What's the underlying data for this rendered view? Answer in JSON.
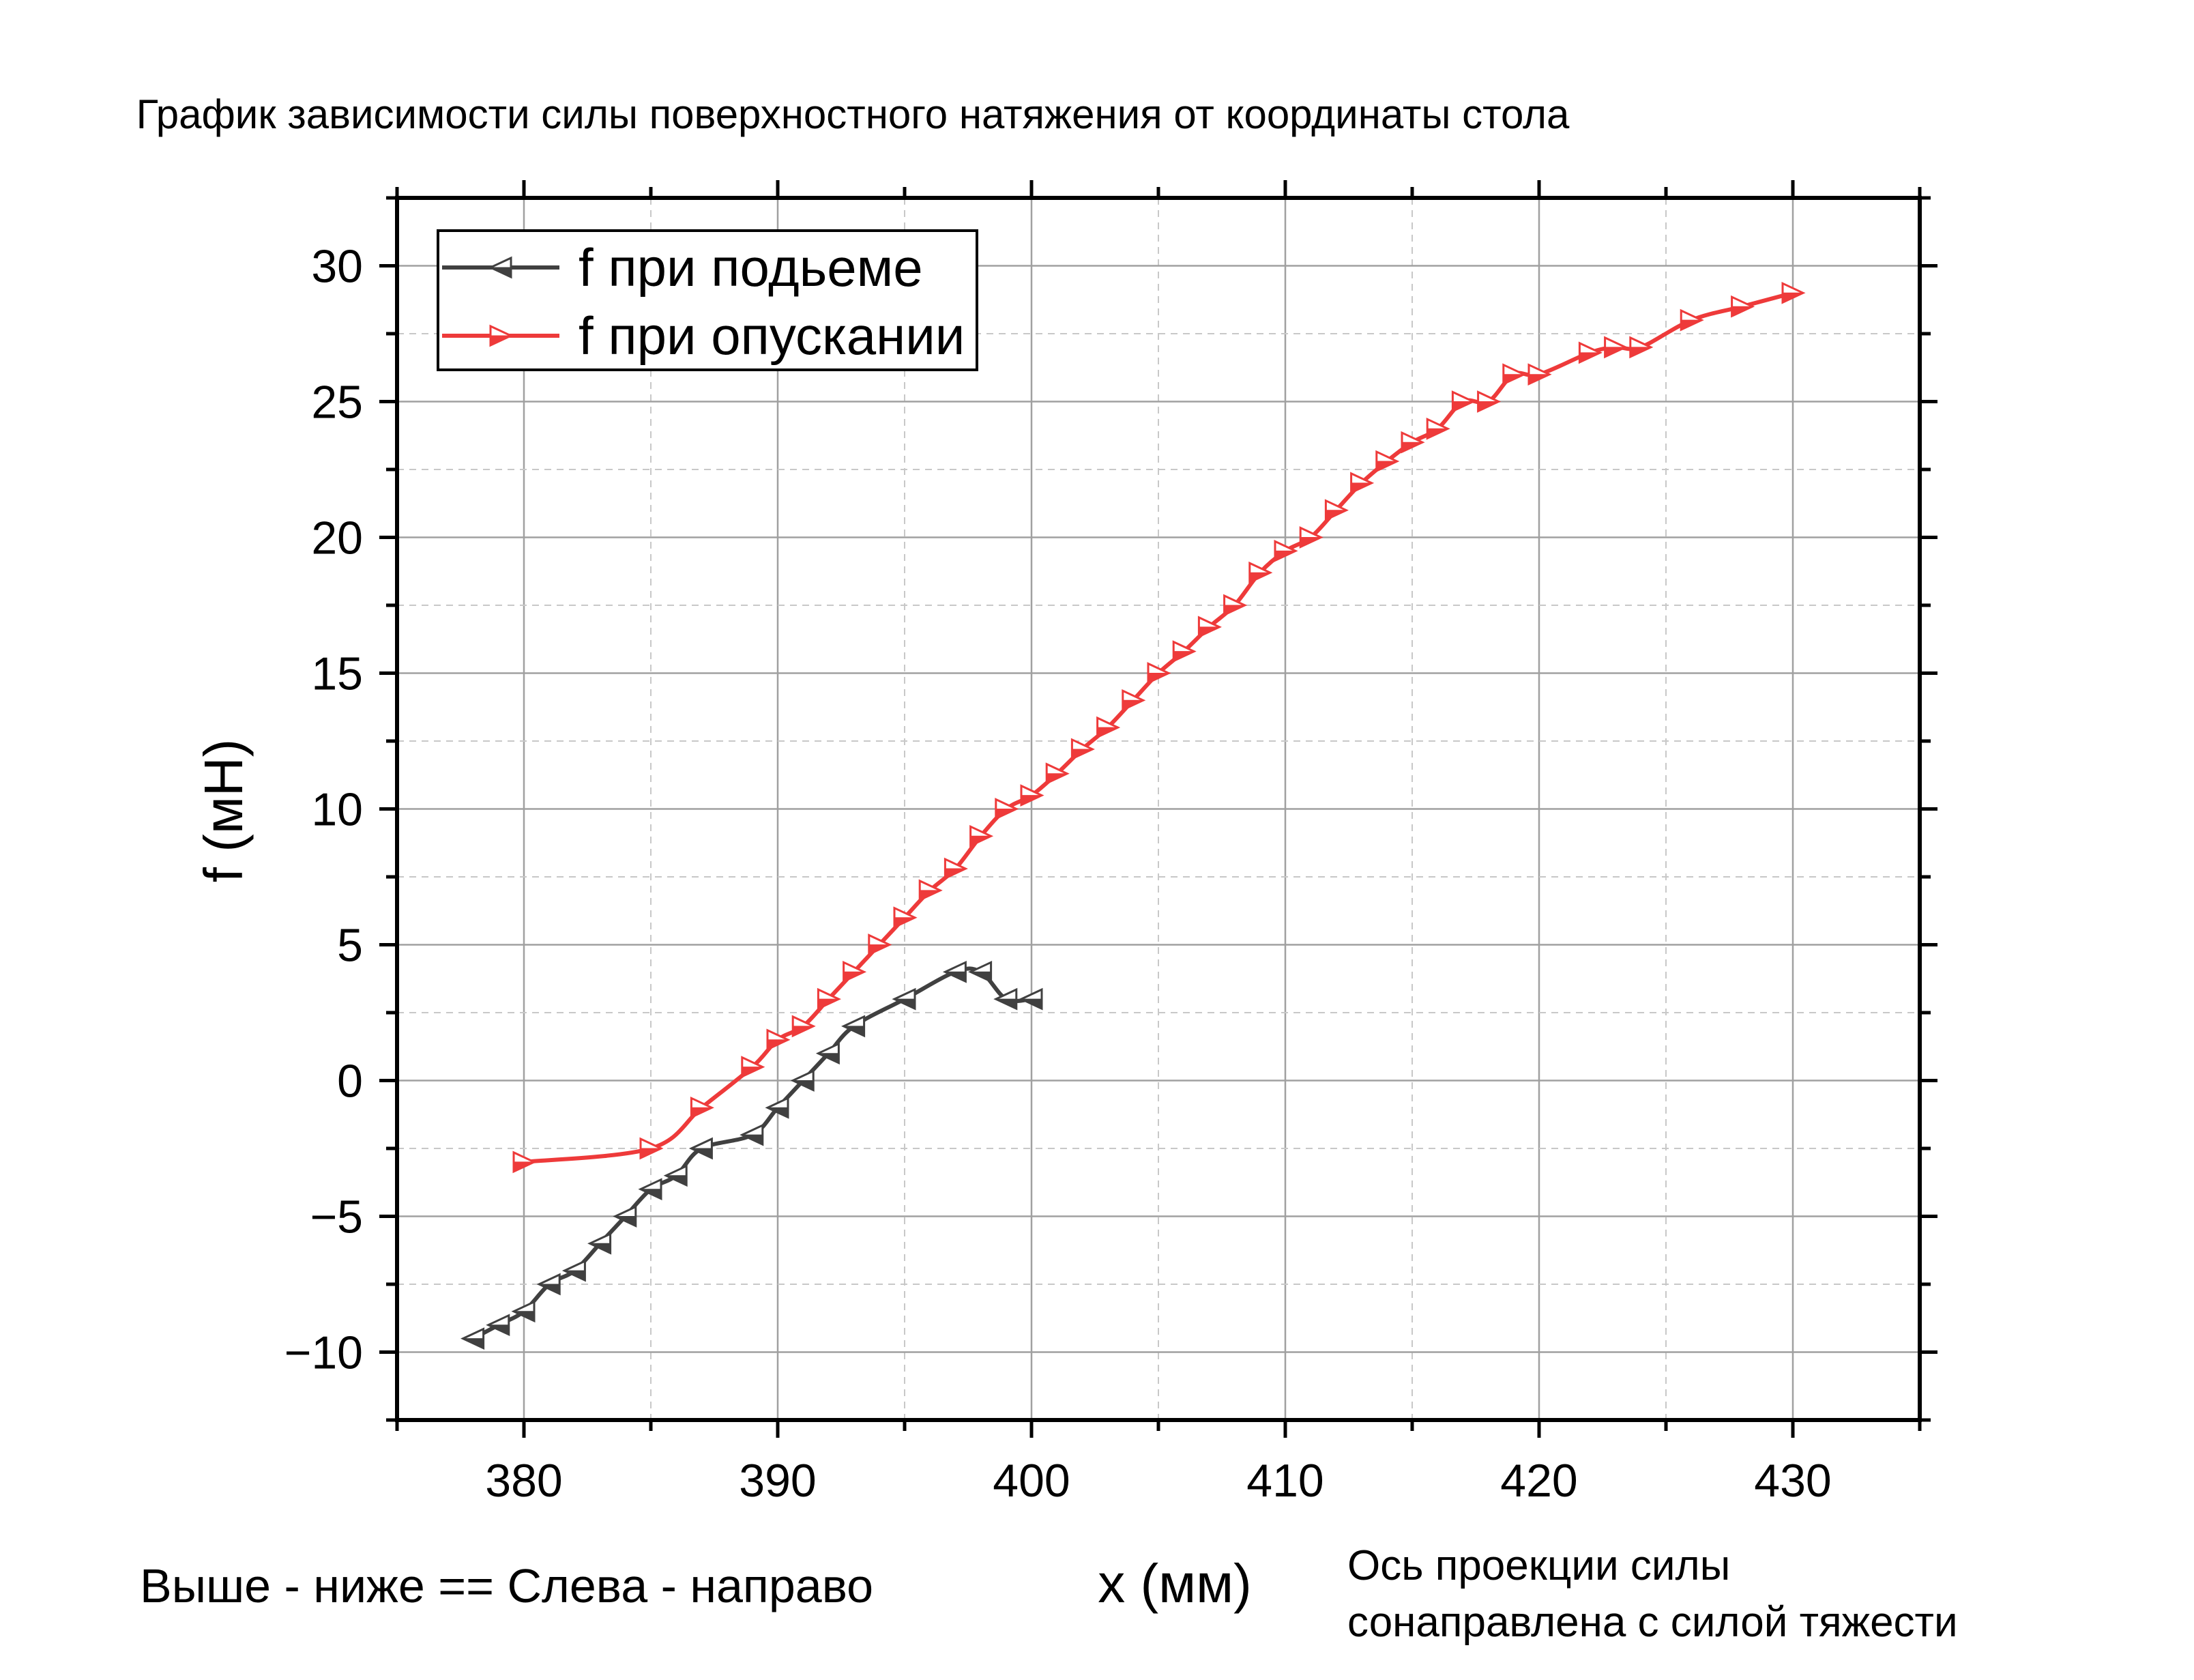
{
  "chart_data": {
    "type": "line",
    "title": "График зависимости силы поверхностного натяжения от координаты стола",
    "xlabel": "x (мм)",
    "ylabel": "f (мН)",
    "xlim": [
      375,
      435
    ],
    "ylim": [
      -12.5,
      32.5
    ],
    "x_ticks": [
      380,
      390,
      400,
      410,
      420,
      430
    ],
    "x_tick_labels": [
      "380",
      "390",
      "400",
      "410",
      "420",
      "430"
    ],
    "y_ticks": [
      -10,
      -5,
      0,
      5,
      10,
      15,
      20,
      25,
      30
    ],
    "y_tick_labels": [
      "−10",
      "−5",
      "0",
      "5",
      "10",
      "15",
      "20",
      "25",
      "30"
    ],
    "grid": true,
    "legend_position": "top-left",
    "series": [
      {
        "name": "f при подьеме",
        "color": "#404040",
        "marker": "triangle-left",
        "x": [
          378,
          379,
          380,
          381,
          382,
          383,
          384,
          385,
          386,
          387,
          389,
          390,
          391,
          392,
          393,
          395,
          397,
          398,
          399,
          400
        ],
        "y": [
          -9.5,
          -9,
          -8.5,
          -7.5,
          -7,
          -6,
          -5,
          -4,
          -3.5,
          -2.5,
          -2,
          -1,
          0,
          1,
          2,
          3,
          4,
          4,
          3,
          3
        ]
      },
      {
        "name": "f при опускании",
        "color": "#ee3a3a",
        "marker": "triangle-right",
        "x": [
          380,
          385,
          387,
          389,
          390,
          391,
          392,
          393,
          394,
          395,
          396,
          397,
          398,
          399,
          400,
          401,
          402,
          403,
          404,
          405,
          406,
          407,
          408,
          409,
          410,
          411,
          412,
          413,
          414,
          415,
          416,
          417,
          418,
          419,
          420,
          422,
          423,
          424,
          426,
          428,
          430
        ],
        "y": [
          -3,
          -2.5,
          -1,
          0.5,
          1.5,
          2,
          3,
          4,
          5,
          6,
          7,
          7.8,
          9,
          10,
          10.5,
          11.3,
          12.2,
          13,
          14,
          15,
          15.8,
          16.7,
          17.5,
          18.7,
          19.5,
          20,
          21,
          22,
          22.8,
          23.5,
          24,
          25,
          25,
          26,
          26,
          26.8,
          27,
          27,
          28,
          28.5,
          29
        ]
      }
    ]
  },
  "notes": {
    "left_note": "Выше - ниже == Слева - направо",
    "right_note_line1": "Ось проекции силы",
    "right_note_line2": "сонаправлена с силой тяжести"
  }
}
